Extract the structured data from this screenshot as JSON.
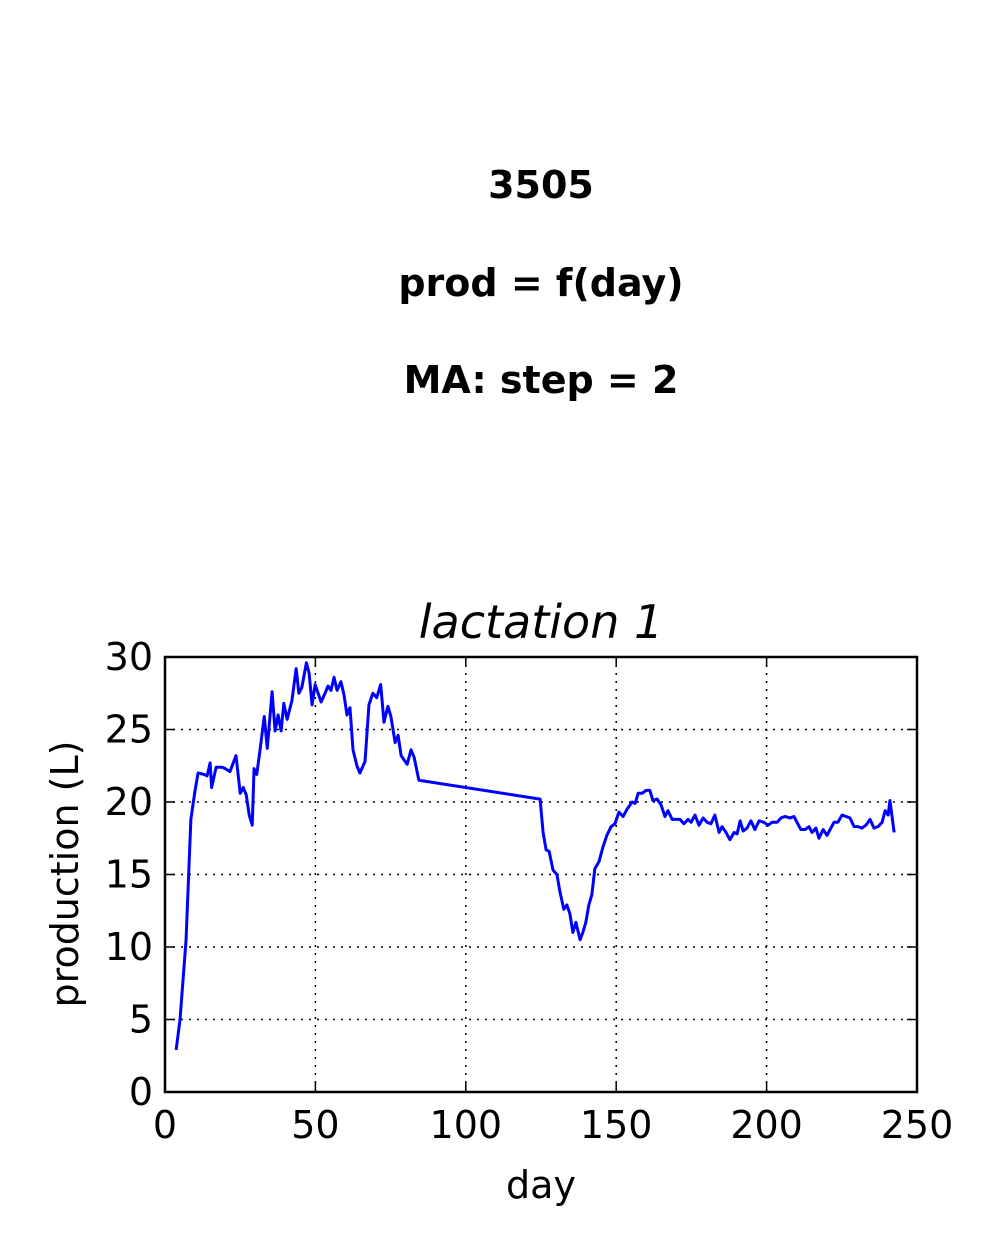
{
  "chart_data": {
    "type": "line",
    "title_lines": [
      "3505",
      "prod = f(day)",
      "MA: step = 2"
    ],
    "subplot_title": "lactation 1",
    "xlabel": "day",
    "ylabel": "production (L)",
    "xlim": [
      0,
      250
    ],
    "xticks": [
      0,
      50,
      100,
      150,
      200,
      250
    ],
    "ylim": [
      0,
      30
    ],
    "yticks": [
      0,
      5,
      10,
      15,
      20,
      25,
      30
    ],
    "grid": true,
    "color": "#0000ff",
    "x": [
      3.7,
      5,
      7,
      8.6,
      10,
      11,
      13,
      14,
      15,
      15.5,
      17,
      19,
      20,
      21.6,
      23.6,
      25,
      26,
      27,
      28,
      29,
      29.6,
      30.5,
      31.6,
      33,
      34,
      35.6,
      36.6,
      37.6,
      38.6,
      39.5,
      40.6,
      42.2,
      43.6,
      44.5,
      45.5,
      47,
      47.9,
      48.9,
      49.9,
      50.9,
      51.9,
      53.2,
      54.2,
      55.2,
      56.2,
      57.2,
      58.5,
      59.5,
      60.5,
      61.5,
      62.5,
      63.8,
      64.8,
      66.5,
      67.8,
      69.1,
      70.4,
      71.7,
      72.8,
      74.1,
      75.1,
      76.5,
      77.5,
      78.5,
      80.5,
      81.8,
      82.8,
      84.4,
      124.7,
      125.7,
      126.7,
      127.7,
      129,
      130.3,
      131.3,
      132.6,
      133.6,
      134.6,
      135.6,
      136.6,
      138,
      138.9,
      139.9,
      140.9,
      141.9,
      142.9,
      144.3,
      145.6,
      146.9,
      148.3,
      149.6,
      150.9,
      152.3,
      153.6,
      155.3,
      156.3,
      157.3,
      158.6,
      159.9,
      161.2,
      162.2,
      163.6,
      164.9,
      166.2,
      167.2,
      168.6,
      169.9,
      171.2,
      172.5,
      173.9,
      174.9,
      176.2,
      177.5,
      178.9,
      180.2,
      181.5,
      182.8,
      184.2,
      185.2,
      186.5,
      187.8,
      189.2,
      190.2,
      191.2,
      192.2,
      193.5,
      194.8,
      196.1,
      197.5,
      199.1,
      200.5,
      201.8,
      203.5,
      204.8,
      206.1,
      207.8,
      209.1,
      210.1,
      211.4,
      212.8,
      214.1,
      215.1,
      216.4,
      217.4,
      218.8,
      220.1,
      221.1,
      222.4,
      223.7,
      225.1,
      226.4,
      227.7,
      229.1,
      230.4,
      231.7,
      233,
      234.4,
      235.7,
      237,
      238.4,
      239.4,
      240.4,
      241,
      242.4
    ],
    "values": [
      2.9,
      5,
      10.5,
      18.8,
      20.8,
      22,
      21.9,
      21.8,
      22.7,
      21,
      22.4,
      22.4,
      22.3,
      22.1,
      23.2,
      20.6,
      21,
      20.5,
      19.1,
      18.4,
      22.3,
      21.9,
      23.6,
      25.9,
      23.7,
      27.6,
      24.9,
      26,
      24.9,
      26.8,
      25.7,
      27,
      29.2,
      27.5,
      27.9,
      29.6,
      28.9,
      26.7,
      28.1,
      27.5,
      26.9,
      27.5,
      28,
      27.7,
      28.6,
      27.7,
      28.3,
      27.4,
      26,
      26.5,
      23.6,
      22.5,
      22,
      22.8,
      26.7,
      27.5,
      27.2,
      28.1,
      25.5,
      26.6,
      25.9,
      24.1,
      24.6,
      23.2,
      22.6,
      23.6,
      23.1,
      21.5,
      20.2,
      17.9,
      16.7,
      16.6,
      15.3,
      15,
      13.8,
      12.6,
      12.9,
      12.3,
      11,
      11.7,
      10.5,
      11,
      11.7,
      12.9,
      13.6,
      15.4,
      15.9,
      16.9,
      17.7,
      18.3,
      18.5,
      19.3,
      19,
      19.5,
      20,
      19.9,
      20.6,
      20.6,
      20.8,
      20.8,
      20.1,
      20.2,
      19.8,
      19,
      19.4,
      18.8,
      18.8,
      18.8,
      18.5,
      18.8,
      18.6,
      19.1,
      18.4,
      18.9,
      18.6,
      18.5,
      19.1,
      17.9,
      18.3,
      17.9,
      17.4,
      17.9,
      17.8,
      18.7,
      18,
      18.2,
      18.7,
      18.1,
      18.7,
      18.6,
      18.4,
      18.6,
      18.6,
      18.9,
      19,
      18.9,
      19,
      18.6,
      18.1,
      18.1,
      18.3,
      17.9,
      18.2,
      17.5,
      18.1,
      17.7,
      18.1,
      18.6,
      18.6,
      19.1,
      19,
      18.9,
      18.3,
      18.3,
      18.2,
      18.4,
      18.8,
      18.2,
      18.3,
      18.6,
      19.4,
      19.1,
      20.1,
      17.9
    ]
  }
}
